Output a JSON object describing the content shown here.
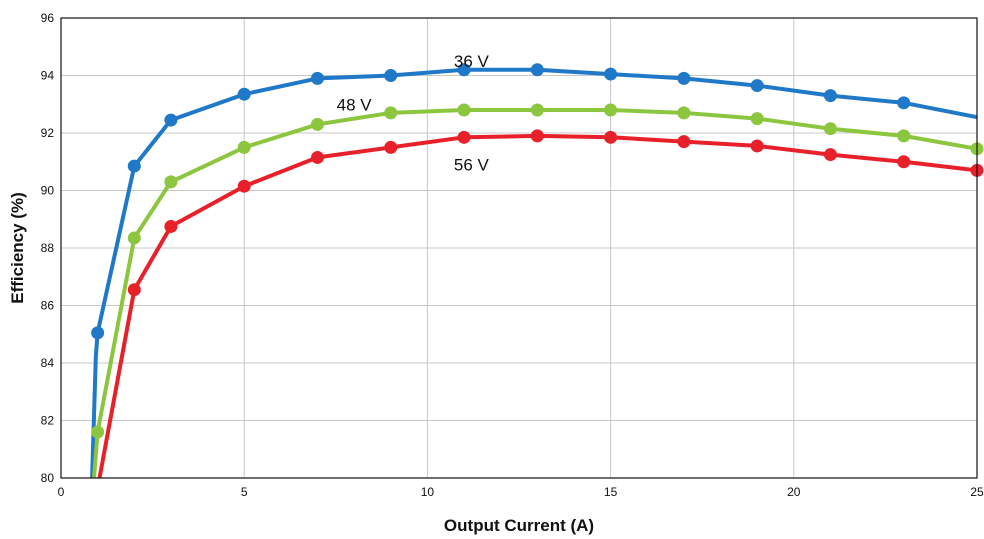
{
  "chart_data": {
    "type": "line",
    "xlabel": "Output Current (A)",
    "ylabel": "Efficiency (%)",
    "xlim": [
      0,
      25
    ],
    "ylim": [
      80,
      96
    ],
    "xticks": [
      0,
      5,
      10,
      15,
      20,
      25
    ],
    "yticks": [
      80,
      82,
      84,
      86,
      88,
      90,
      92,
      94,
      96
    ],
    "grid": true,
    "legend": "inline labels",
    "series": [
      {
        "name": "36 V",
        "color": "#1f78c8",
        "x": [
          0.85,
          0.95,
          1,
          2,
          3,
          5,
          7,
          9,
          11,
          13,
          15,
          17,
          19,
          21,
          23,
          25
        ],
        "y": [
          80,
          84.2,
          85.05,
          90.85,
          92.45,
          93.35,
          93.9,
          94.0,
          94.2,
          94.2,
          94.05,
          93.9,
          93.65,
          93.3,
          93.05,
          92.55
        ],
        "markers_x": [
          1,
          2,
          3,
          5,
          7,
          9,
          11,
          13,
          15,
          17,
          19,
          21,
          23
        ],
        "markers_y": [
          85.05,
          90.85,
          92.45,
          93.35,
          93.9,
          94.0,
          94.2,
          94.2,
          94.05,
          93.9,
          93.65,
          93.3,
          93.05
        ]
      },
      {
        "name": "48 V",
        "color": "#8cc63f",
        "x": [
          0.9,
          1,
          2,
          3,
          5,
          7,
          9,
          11,
          13,
          15,
          17,
          19,
          21,
          23,
          25
        ],
        "y": [
          80,
          81.6,
          88.35,
          90.3,
          91.5,
          92.3,
          92.7,
          92.8,
          92.8,
          92.8,
          92.7,
          92.5,
          92.15,
          91.9,
          91.45
        ],
        "markers_x": [
          1,
          2,
          3,
          5,
          7,
          9,
          11,
          13,
          15,
          17,
          19,
          21,
          23,
          25
        ],
        "markers_y": [
          81.6,
          88.35,
          90.3,
          91.5,
          92.3,
          92.7,
          92.8,
          92.8,
          92.8,
          92.7,
          92.5,
          92.15,
          91.9,
          91.45
        ]
      },
      {
        "name": "56 V",
        "color": "#e8202a",
        "x": [
          0.95,
          1.05,
          2,
          3,
          5,
          7,
          9,
          11,
          13,
          15,
          17,
          19,
          21,
          23,
          25
        ],
        "y": [
          79.6,
          80.0,
          86.55,
          88.75,
          90.15,
          91.15,
          91.5,
          91.85,
          91.9,
          91.85,
          91.7,
          91.55,
          91.25,
          91.0,
          90.7
        ],
        "markers_x": [
          2,
          3,
          5,
          7,
          9,
          11,
          13,
          15,
          17,
          19,
          21,
          23,
          25
        ],
        "markers_y": [
          86.55,
          88.75,
          90.15,
          91.15,
          91.5,
          91.85,
          91.9,
          91.85,
          91.7,
          91.55,
          91.25,
          91.0,
          90.7
        ]
      }
    ],
    "annotations": [
      {
        "text": "36 V",
        "x": 11.2,
        "y": 94.5
      },
      {
        "text": "48 V",
        "x": 8.0,
        "y": 93.0
      },
      {
        "text": "56 V",
        "x": 11.2,
        "y": 90.9
      }
    ]
  }
}
